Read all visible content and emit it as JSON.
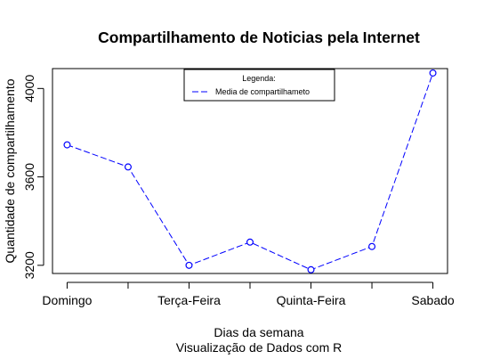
{
  "chart_data": {
    "type": "line",
    "title": "Compartilhamento de Noticias pela Internet",
    "xlabel": "Dias da semana",
    "sublabel": "Visualização de Dados com R",
    "ylabel": "Quantidade de compartilhamento",
    "x": [
      1,
      2,
      3,
      4,
      5,
      6,
      7
    ],
    "x_tick_positions": [
      1,
      2,
      3,
      4,
      5,
      6,
      7
    ],
    "x_tick_labels": [
      "Domingo",
      "",
      "Terça-Feira",
      "",
      "Quinta-Feira",
      "",
      "Sabado"
    ],
    "y_ticks": [
      3200,
      3600,
      4000
    ],
    "ylim": [
      3163,
      4090
    ],
    "xlim": [
      0.76,
      7.24
    ],
    "series": [
      {
        "name": "Media de compartilhameto",
        "values": [
          3745,
          3645,
          3200,
          3305,
          3180,
          3285,
          4070
        ],
        "color": "#0000ff",
        "line_style": "dashed",
        "marker": "open-circle"
      }
    ],
    "legend": {
      "title": "Legenda:",
      "position": "top"
    },
    "grid": false
  }
}
